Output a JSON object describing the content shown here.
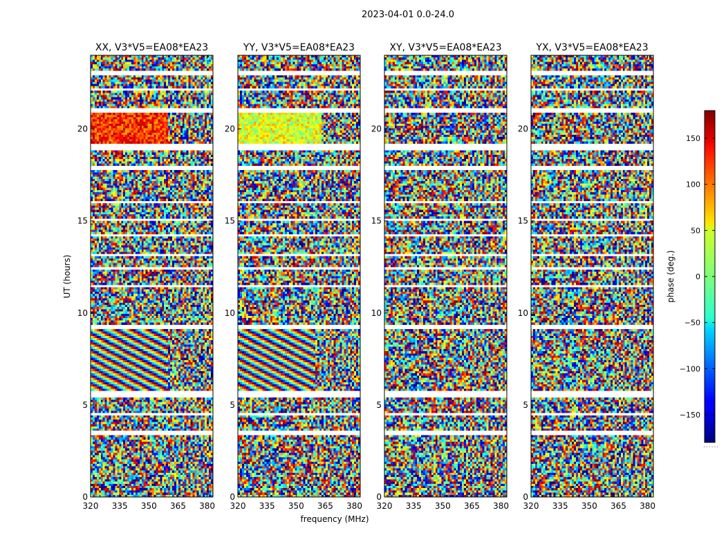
{
  "figure": {
    "suptitle": "2023-04-01 0.0-24.0",
    "xlabel": "frequency (MHz)",
    "ylabel": "UT (hours)",
    "colorbar_label": "phase (deg.)",
    "colorbar_dots": "......"
  },
  "chart_data": [
    {
      "type": "heatmap",
      "title": "XX, V3*V5=EA08*EA23",
      "xlabel": "frequency (MHz)",
      "ylabel": "UT (hours)",
      "xlim": [
        320,
        383
      ],
      "ylim": [
        0,
        24
      ],
      "xticks": [
        320,
        335,
        350,
        365,
        380
      ],
      "yticks": [
        0,
        5,
        10,
        15,
        20
      ],
      "features": [
        {
          "kind": "uniform_phase",
          "t_start": 19.2,
          "t_end": 20.9,
          "f_start": 320,
          "f_end": 360,
          "phase_deg": 120
        },
        {
          "kind": "phase_fringes",
          "t_start": 5.7,
          "t_end": 9.1,
          "f_start": 320,
          "f_end": 360
        }
      ]
    },
    {
      "type": "heatmap",
      "title": "YY, V3*V5=EA08*EA23",
      "xlabel": "frequency (MHz)",
      "ylabel": "",
      "xlim": [
        320,
        383
      ],
      "ylim": [
        0,
        24
      ],
      "xticks": [
        320,
        335,
        350,
        365,
        380
      ],
      "yticks": [
        0,
        5,
        10,
        15,
        20
      ],
      "features": [
        {
          "kind": "uniform_phase",
          "t_start": 19.2,
          "t_end": 20.9,
          "f_start": 320,
          "f_end": 363,
          "phase_deg": 35
        },
        {
          "kind": "phase_fringes",
          "t_start": 5.7,
          "t_end": 9.1,
          "f_start": 320,
          "f_end": 360
        }
      ]
    },
    {
      "type": "heatmap",
      "title": "XY, V3*V5=EA08*EA23",
      "xlabel": "",
      "ylabel": "",
      "xlim": [
        320,
        383
      ],
      "ylim": [
        0,
        24
      ],
      "xticks": [
        320,
        335,
        350,
        365,
        380
      ],
      "yticks": [
        0,
        5,
        10,
        15,
        20
      ],
      "features": []
    },
    {
      "type": "heatmap",
      "title": "YX, V3*V5=EA08*EA23",
      "xlabel": "",
      "ylabel": "",
      "xlim": [
        320,
        383
      ],
      "ylim": [
        0,
        24
      ],
      "xticks": [
        320,
        335,
        350,
        365,
        380
      ],
      "yticks": [
        0,
        5,
        10,
        15,
        20
      ],
      "features": []
    }
  ],
  "colorbar": {
    "vmin": -180,
    "vmax": 180,
    "ticks": [
      -150,
      -100,
      -50,
      0,
      50,
      100,
      150
    ],
    "tick_labels": [
      "−150",
      "−100",
      "−50",
      "0",
      "50",
      "100",
      "150"
    ],
    "colormap": "jet"
  },
  "flagged_time_ranges_hours": [
    [
      3.4,
      3.6
    ],
    [
      4.5,
      4.55
    ],
    [
      5.45,
      5.8
    ],
    [
      9.1,
      9.35
    ],
    [
      10.05,
      10.1
    ],
    [
      11.45,
      11.5
    ],
    [
      12.35,
      12.5
    ],
    [
      13.1,
      13.2
    ],
    [
      14.2,
      14.25
    ],
    [
      15.05,
      15.1
    ],
    [
      16.0,
      16.08
    ],
    [
      17.8,
      18.0
    ],
    [
      18.85,
      19.2
    ],
    [
      20.9,
      21.1
    ],
    [
      22.05,
      22.15
    ],
    [
      22.9,
      23.15
    ]
  ],
  "colors": {
    "background": "#ffffff",
    "axes": "#000000",
    "gap": "#ffffff"
  }
}
